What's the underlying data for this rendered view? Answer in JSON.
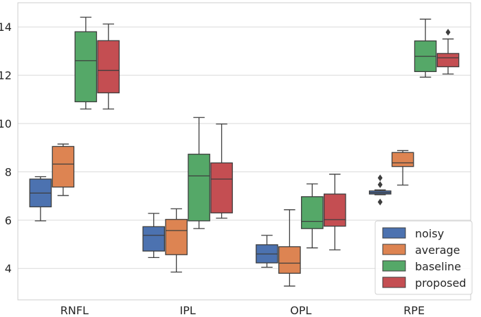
{
  "chart_data": {
    "type": "boxplot",
    "title": "",
    "xlabel": "",
    "ylabel": "",
    "ylim": [
      2.7,
      15.0
    ],
    "yticks": [
      4,
      6,
      8,
      10,
      12,
      14
    ],
    "categories": [
      "RNFL",
      "IPL",
      "OPL",
      "RPE"
    ],
    "legend_position": "lower-right",
    "series": [
      {
        "name": "noisy",
        "color": "#4c72b0",
        "boxes": [
          {
            "whislo": 5.97,
            "q1": 6.55,
            "med": 7.12,
            "q3": 7.7,
            "whishi": 7.8,
            "fliers": []
          },
          {
            "whislo": 4.45,
            "q1": 4.72,
            "med": 5.37,
            "q3": 5.73,
            "whishi": 6.28,
            "fliers": []
          },
          {
            "whislo": 4.05,
            "q1": 4.23,
            "med": 4.6,
            "q3": 4.98,
            "whishi": 5.37,
            "fliers": []
          },
          {
            "whislo": 7.05,
            "q1": 7.08,
            "med": 7.14,
            "q3": 7.21,
            "whishi": 7.25,
            "fliers": [
              6.75,
              7.47,
              7.75
            ]
          }
        ]
      },
      {
        "name": "average",
        "color": "#dd8452",
        "boxes": [
          {
            "whislo": 7.02,
            "q1": 7.37,
            "med": 8.32,
            "q3": 9.05,
            "whishi": 9.15,
            "fliers": []
          },
          {
            "whislo": 3.85,
            "q1": 4.57,
            "med": 5.57,
            "q3": 6.03,
            "whishi": 6.47,
            "fliers": []
          },
          {
            "whislo": 3.27,
            "q1": 3.8,
            "med": 4.22,
            "q3": 4.9,
            "whishi": 6.43,
            "fliers": []
          },
          {
            "whislo": 7.45,
            "q1": 8.22,
            "med": 8.37,
            "q3": 8.8,
            "whishi": 8.88,
            "fliers": []
          }
        ]
      },
      {
        "name": "baseline",
        "color": "#55a868",
        "boxes": [
          {
            "whislo": 10.6,
            "q1": 10.9,
            "med": 12.6,
            "q3": 13.8,
            "whishi": 14.4,
            "fliers": []
          },
          {
            "whislo": 5.65,
            "q1": 5.97,
            "med": 7.83,
            "q3": 8.73,
            "whishi": 10.25,
            "fliers": []
          },
          {
            "whislo": 4.85,
            "q1": 5.65,
            "med": 5.95,
            "q3": 6.97,
            "whishi": 7.5,
            "fliers": []
          },
          {
            "whislo": 11.92,
            "q1": 12.15,
            "med": 12.78,
            "q3": 13.42,
            "whishi": 14.32,
            "fliers": []
          }
        ]
      },
      {
        "name": "proposed",
        "color": "#c44e52",
        "boxes": [
          {
            "whislo": 10.6,
            "q1": 11.27,
            "med": 12.2,
            "q3": 13.43,
            "whishi": 14.12,
            "fliers": []
          },
          {
            "whislo": 6.08,
            "q1": 6.3,
            "med": 7.7,
            "q3": 8.37,
            "whishi": 9.98,
            "fliers": []
          },
          {
            "whislo": 4.77,
            "q1": 5.75,
            "med": 6.02,
            "q3": 7.08,
            "whishi": 7.9,
            "fliers": []
          },
          {
            "whislo": 12.05,
            "q1": 12.35,
            "med": 12.72,
            "q3": 12.9,
            "whishi": 13.5,
            "fliers": [
              13.78
            ]
          }
        ]
      }
    ]
  }
}
